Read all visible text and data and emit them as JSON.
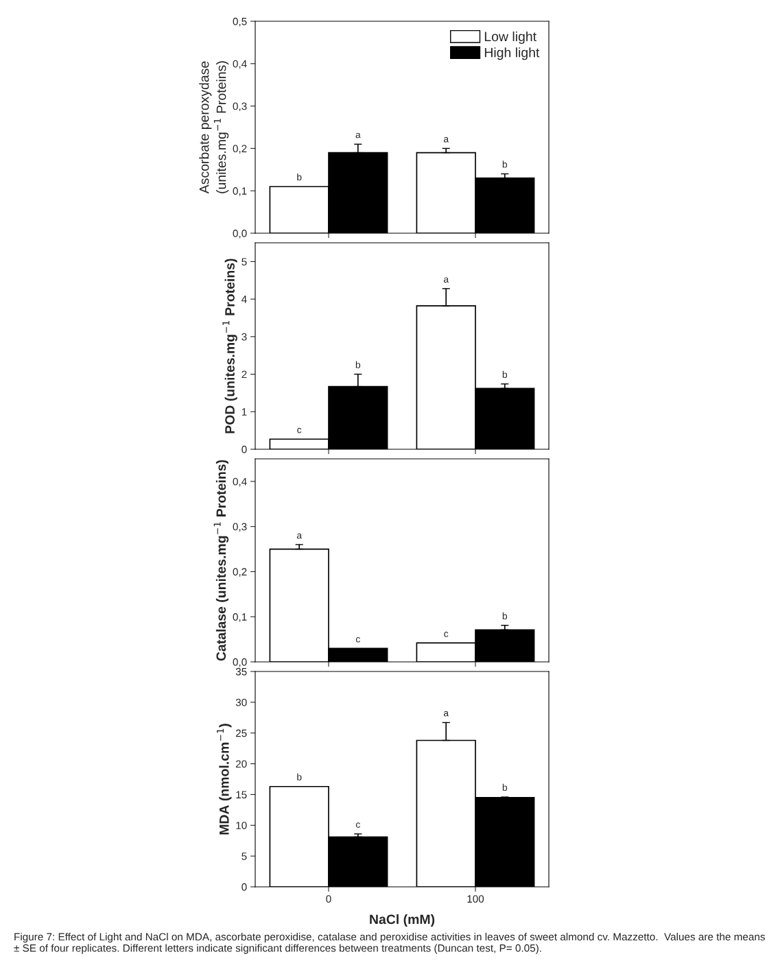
{
  "chart_data": [
    {
      "type": "bar",
      "ylabel": "Ascorbate peroxydase\n(unites.mg$^{−1}$ Proteins)",
      "categories": [
        "0",
        "100"
      ],
      "ylim": [
        0,
        0.5
      ],
      "yticks": [
        {
          "value": 0,
          "label": "0,0"
        },
        {
          "value": 0.1,
          "label": "0,1"
        },
        {
          "value": 0.2,
          "label": "0,2"
        },
        {
          "value": 0.3,
          "label": "0,3"
        },
        {
          "value": 0.4,
          "label": "0,4"
        },
        {
          "value": 0.5,
          "label": "0,5"
        }
      ],
      "tick_labels": "y",
      "legend": "top right",
      "grid": false,
      "series": [
        {
          "name": "Low light",
          "color": "#ffffff",
          "values": [
            0.11,
            0.19
          ],
          "errors": [
            null,
            [
              0.19,
              0.2
            ]
          ],
          "value_labels": [
            "b",
            "a"
          ]
        },
        {
          "name": "High light",
          "color": "#000000",
          "values": [
            0.19,
            0.13
          ],
          "errors": [
            [
              0.19,
              0.21
            ],
            [
              0.13,
              0.14
            ]
          ],
          "value_labels": [
            "a",
            "b"
          ]
        }
      ]
    },
    {
      "type": "bar",
      "ylabel": "POD (unites.mg$^{−1}$ Proteins)",
      "categories": [
        "0",
        "100"
      ],
      "ylim": [
        0,
        5.5
      ],
      "yticks": [
        0,
        1,
        2,
        3,
        4,
        5
      ],
      "tick_labels": "y",
      "grid": false,
      "series": [
        {
          "color": "#ffffff",
          "values": [
            0.27,
            3.82
          ],
          "errors": [
            null,
            [
              3.82,
              4.28
            ]
          ],
          "value_labels": [
            "c",
            "a"
          ]
        },
        {
          "color": "#000000",
          "values": [
            1.67,
            1.62
          ],
          "errors": [
            [
              1.67,
              2.0
            ],
            [
              1.62,
              1.74
            ]
          ],
          "value_labels": [
            "b",
            "b"
          ]
        }
      ]
    },
    {
      "type": "bar",
      "ylabel": "Catalase (unites.mg$^{−1}$ Proteins)",
      "categories": [
        "0",
        "100"
      ],
      "ylim": [
        0,
        0.45
      ],
      "yticks": [
        {
          "value": 0,
          "label": "0,0"
        },
        {
          "value": 0.1,
          "label": "0,1"
        },
        {
          "value": 0.2,
          "label": "0,2"
        },
        {
          "value": 0.3,
          "label": "0,3"
        },
        {
          "value": 0.4,
          "label": "0,4"
        }
      ],
      "tick_labels": "y",
      "grid": false,
      "series": [
        {
          "color": "#ffffff",
          "values": [
            0.25,
            0.042
          ],
          "errors": [
            [
              0.25,
              0.26
            ],
            null
          ],
          "value_labels": [
            "a",
            "c"
          ]
        },
        {
          "color": "#000000",
          "values": [
            0.03,
            0.071
          ],
          "errors": [
            null,
            [
              0.071,
              0.081
            ]
          ],
          "value_labels": [
            "c",
            "b"
          ]
        }
      ]
    },
    {
      "type": "bar",
      "ylabel": "MDA (nmol.cm$^{−1}$)",
      "xlabel": "NaCl (mM)",
      "categories": [
        "0",
        "100"
      ],
      "ylim": [
        0,
        35
      ],
      "yticks": [
        0,
        5,
        10,
        15,
        20,
        25,
        30,
        35
      ],
      "grid": false,
      "annotations": [
        "Figure 7: Effect of Light and NaCl on MDA, ascorbate peroxidise, catalase and peroxidise activities in leaves of sweet almond cv. Mazzetto.  Values are the means ± SE of four replicates. Different letters indicate significant differences between treatments (Duncan test, P= 0.05)."
      ],
      "series": [
        {
          "color": "#ffffff",
          "values": [
            16.3,
            23.8
          ],
          "errors": [
            null,
            [
              23.8,
              26.7
            ]
          ],
          "value_labels": [
            "b",
            "a"
          ]
        },
        {
          "color": "#000000",
          "values": [
            8.1,
            14.5
          ],
          "errors": [
            [
              8.1,
              8.6
            ],
            [
              14.5,
              14.6
            ]
          ],
          "value_labels": [
            "c",
            "b"
          ]
        }
      ]
    }
  ]
}
